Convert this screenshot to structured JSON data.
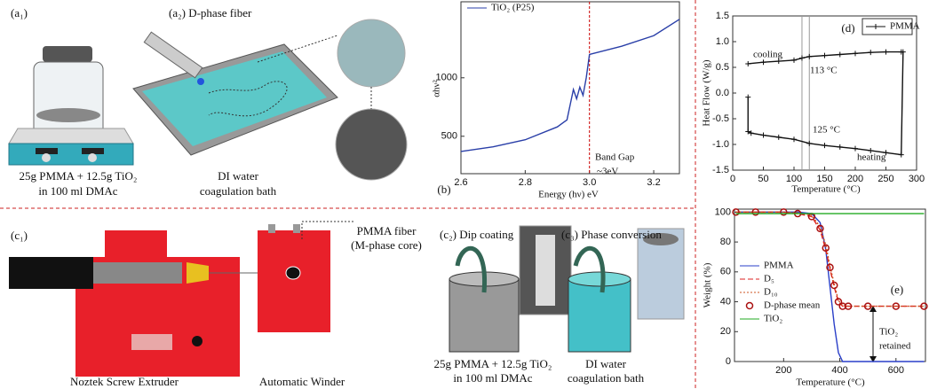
{
  "panels": {
    "a1": {
      "label": "(a₁)",
      "caption": [
        "25g PMMA + 12.5g TiO₂",
        "in 100 ml DMAc"
      ]
    },
    "a2": {
      "label": "(a₂) D-phase fiber",
      "caption": [
        "DI water",
        "coagulation bath"
      ]
    },
    "c1": {
      "label": "(c₁)",
      "fiber": [
        "PMMA fiber",
        "(M-phase core)"
      ],
      "captions": [
        "Noztek Screw Extruder",
        "Automatic Winder"
      ]
    },
    "c2": {
      "label": "(c₂) Dip coating",
      "caption": [
        "25g PMMA + 12.5g TiO₂",
        "in 100 ml DMAc"
      ]
    },
    "c3": {
      "label": "(c₃) Phase conversion",
      "caption": [
        "DI water",
        "coagulation bath"
      ]
    }
  },
  "chart_data": [
    {
      "type": "line",
      "label": "(b)",
      "x_label": "Energy (hν) eV",
      "y_label": "αhν²",
      "x": [
        2.6,
        2.7,
        2.8,
        2.9,
        2.93,
        2.95,
        2.96,
        2.97,
        2.98,
        2.99,
        3.0,
        3.1,
        3.2,
        3.28
      ],
      "series": [
        {
          "name": "TiO₂ (P25)",
          "color": "#2a3fa8",
          "dash": "solid",
          "marker": "none",
          "values": [
            370,
            410,
            470,
            580,
            640,
            900,
            820,
            920,
            850,
            1000,
            1200,
            1270,
            1360,
            1500
          ]
        }
      ],
      "xlim": [
        2.6,
        3.28
      ],
      "ylim": [
        180,
        1650
      ],
      "xticks": [
        2.6,
        2.8,
        {
          "value": 3,
          "label": "3.0"
        },
        3.2
      ],
      "yticks": [
        500,
        1000
      ],
      "vlines": [
        3
      ],
      "vline_color": "#cc0000",
      "annotations": [
        "Band Gap",
        "~3eV"
      ],
      "legend": "upper left"
    },
    {
      "type": "line",
      "label": "(d)",
      "x_label": "Temperature (°C)",
      "y_label": "Heat Flow (W/g)",
      "x": [
        25,
        25,
        30,
        50,
        75,
        100,
        125,
        150,
        175,
        200,
        225,
        250,
        275,
        278,
        275,
        250,
        225,
        200,
        175,
        150,
        125,
        113,
        100,
        75,
        50,
        25
      ],
      "series": [
        {
          "name": "PMMA",
          "color": "#111111",
          "dash": "solid",
          "marker": "plus",
          "values": [
            -0.08,
            -0.75,
            -0.78,
            -0.82,
            -0.86,
            -0.9,
            -0.98,
            -1.02,
            -1.05,
            -1.08,
            -1.12,
            -1.16,
            -1.2,
            0.8,
            0.8,
            0.8,
            0.79,
            0.77,
            0.75,
            0.73,
            0.71,
            0.68,
            0.64,
            0.62,
            0.6,
            0.57
          ]
        }
      ],
      "xlim": [
        0,
        300
      ],
      "ylim": [
        -1.5,
        1.5
      ],
      "xticks": [
        0,
        50,
        100,
        150,
        200,
        250,
        300
      ],
      "yticks": [
        -1.5,
        {
          "value": -1,
          "label": "-1.0"
        },
        -0.5,
        {
          "value": 0,
          "label": "0.0"
        },
        0.5,
        {
          "value": 1,
          "label": "1.0"
        },
        1.5
      ],
      "vlines": [
        113,
        125
      ],
      "vline_color": "#999999",
      "annotations": [
        "cooling",
        "113 °C",
        "125 °C",
        "heating"
      ],
      "legend": "upper right"
    },
    {
      "type": "line",
      "label": "(e)",
      "x_label": "Temperature (°C)",
      "y_label": "Weight (%)",
      "x": [
        30,
        100,
        200,
        250,
        300,
        330,
        350,
        365,
        380,
        395,
        410,
        430,
        500,
        600,
        700
      ],
      "series": [
        {
          "name": "PMMA",
          "color": "#2a3fc8",
          "dash": "solid",
          "marker": "none",
          "values": [
            100,
            100,
            100,
            100,
            99,
            93,
            75,
            50,
            25,
            6,
            0,
            0,
            0,
            0,
            0
          ]
        },
        {
          "name": "D₅",
          "color": "#dd2222",
          "dash": "dashed",
          "marker": "none",
          "values": [
            100,
            100,
            100,
            99,
            97,
            88,
            75,
            62,
            50,
            40,
            37,
            37,
            37,
            37,
            37
          ]
        },
        {
          "name": "D₁₀",
          "color": "#cc5522",
          "dash": "dotted",
          "marker": "none",
          "values": [
            100,
            100,
            100,
            99.5,
            98,
            90,
            78,
            64,
            52,
            41,
            37.5,
            37,
            37,
            37,
            37
          ]
        },
        {
          "name": "D-phase mean",
          "color": "#aa1111",
          "dash": "none",
          "marker": "circle",
          "values": [
            100,
            100,
            100,
            99,
            97,
            89,
            76,
            63,
            51,
            40,
            37,
            37,
            37,
            37,
            37
          ]
        },
        {
          "name": "TiO₂",
          "color": "#22aa22",
          "dash": "solid",
          "marker": "none",
          "values": [
            99,
            99,
            99,
            99,
            99,
            99,
            99,
            99,
            99,
            99,
            99,
            99,
            99,
            99,
            99
          ]
        }
      ],
      "xlim": [
        25,
        705
      ],
      "ylim": [
        0,
        102
      ],
      "xticks": [
        200,
        400,
        600
      ],
      "yticks": [
        0,
        20,
        40,
        60,
        80,
        100
      ],
      "annotations": [
        "TiO₂",
        "retained"
      ],
      "legend": "center left"
    }
  ]
}
